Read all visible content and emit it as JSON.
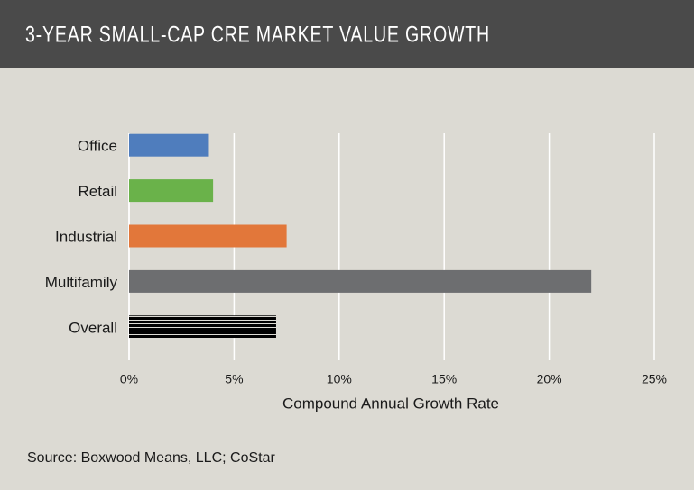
{
  "chart_data": {
    "type": "bar",
    "orientation": "horizontal",
    "title": "3-YEAR SMALL-CAP CRE MARKET VALUE GROWTH",
    "categories": [
      "Office",
      "Retail",
      "Industrial",
      "Multifamily",
      "Overall"
    ],
    "values": [
      3.8,
      4.0,
      7.5,
      22.0,
      7.0
    ],
    "colors": [
      "#4f7dbd",
      "#6ab24a",
      "#e2773a",
      "#6d6e70",
      "#000000"
    ],
    "striped": [
      false,
      false,
      false,
      false,
      true
    ],
    "xlim": [
      0,
      25
    ],
    "xticks": [
      {
        "value": 0,
        "label": "0%"
      },
      {
        "value": 5,
        "label": "5%"
      },
      {
        "value": 10,
        "label": "10%"
      },
      {
        "value": 15,
        "label": "15%"
      },
      {
        "value": 20,
        "label": "20%"
      },
      {
        "value": 25,
        "label": "25%"
      }
    ],
    "xlabel": "Compound Annual Growth Rate",
    "grid": true,
    "source": "Source: Boxwood Means, LLC; CoStar"
  }
}
